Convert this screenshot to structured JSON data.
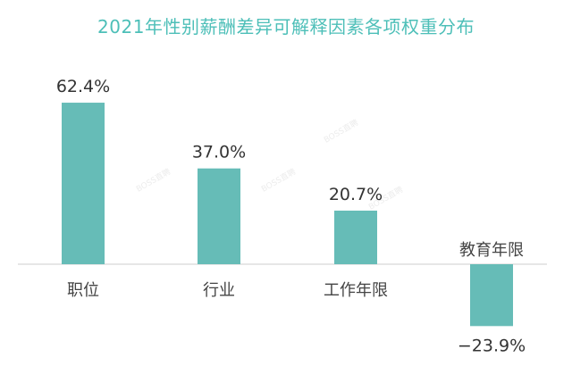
{
  "chart_data": {
    "type": "bar",
    "title": "2021年性别薪酬差异可解释因素各项权重分布",
    "categories": [
      "职位",
      "行业",
      "工作年限",
      "教育年限"
    ],
    "values": [
      62.4,
      37.0,
      20.7,
      -23.9
    ],
    "value_labels": [
      "62.4%",
      "37.0%",
      "20.7%",
      "−23.9%"
    ],
    "unit": "%",
    "ylim": [
      -30,
      70
    ],
    "grid": false,
    "legend": "none",
    "bar_color": "#66bcb7",
    "title_color": "#4dbfb8",
    "axis_color": "#cccccc"
  },
  "watermark": "BOSS直聘"
}
